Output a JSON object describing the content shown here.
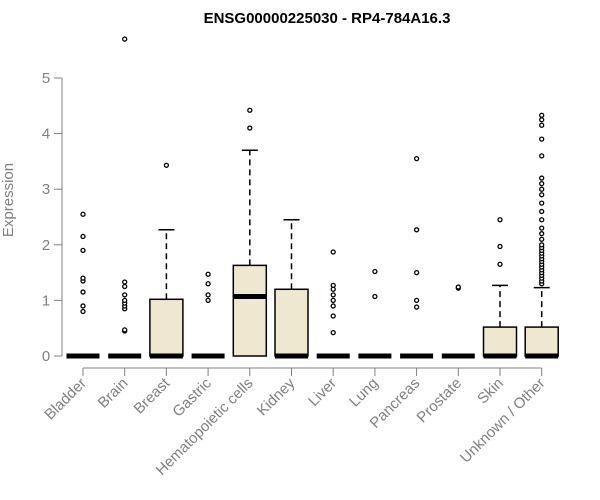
{
  "chart_data": {
    "type": "box",
    "title": "ENSG00000225030 - RP4-784A16.3",
    "ylabel": "Expression",
    "xlabel": "",
    "ylim": [
      0,
      5.6
    ],
    "yticks": [
      0,
      1,
      2,
      3,
      4,
      5
    ],
    "grid": false,
    "categories": [
      "Bladder",
      "Brain",
      "Breast",
      "Gastric",
      "Hematopoietic cells",
      "Kidney",
      "Liver",
      "Lung",
      "Pancreas",
      "Prostate",
      "Skin",
      "Unknown / Other"
    ],
    "boxes": [
      {
        "q1": 0,
        "median": 0,
        "q3": 0,
        "whisker_low": 0,
        "whisker_high": 0,
        "outliers": [
          0.8,
          0.9,
          1.15,
          1.35,
          1.4,
          1.9,
          2.15,
          2.55
        ]
      },
      {
        "q1": 0,
        "median": 0,
        "q3": 0,
        "whisker_low": 0,
        "whisker_high": 0,
        "outliers": [
          0.45,
          0.47,
          0.85,
          0.9,
          0.95,
          1.0,
          1.1,
          1.25,
          1.33,
          5.7
        ]
      },
      {
        "q1": 0,
        "median": 0,
        "q3": 1.02,
        "whisker_low": 0,
        "whisker_high": 2.27,
        "outliers": [
          3.43
        ]
      },
      {
        "q1": 0,
        "median": 0,
        "q3": 0,
        "whisker_low": 0,
        "whisker_high": 0,
        "outliers": [
          1.0,
          1.1,
          1.3,
          1.47
        ]
      },
      {
        "q1": 0,
        "median": 1.07,
        "q3": 1.63,
        "whisker_low": 0,
        "whisker_high": 3.7,
        "outliers": [
          4.1,
          4.42
        ]
      },
      {
        "q1": 0,
        "median": 0,
        "q3": 1.2,
        "whisker_low": 0,
        "whisker_high": 2.45,
        "outliers": []
      },
      {
        "q1": 0,
        "median": 0,
        "q3": 0,
        "whisker_low": 0,
        "whisker_high": 0,
        "outliers": [
          0.42,
          0.72,
          0.9,
          1.0,
          1.1,
          1.2,
          1.27,
          1.87
        ]
      },
      {
        "q1": 0,
        "median": 0,
        "q3": 0,
        "whisker_low": 0,
        "whisker_high": 0,
        "outliers": [
          1.07,
          1.52
        ]
      },
      {
        "q1": 0,
        "median": 0,
        "q3": 0,
        "whisker_low": 0,
        "whisker_high": 0,
        "outliers": [
          0.88,
          1.0,
          1.5,
          2.27,
          3.55
        ]
      },
      {
        "q1": 0,
        "median": 0,
        "q3": 0,
        "whisker_low": 0,
        "whisker_high": 0,
        "outliers": [
          1.22,
          1.24
        ]
      },
      {
        "q1": 0,
        "median": 0,
        "q3": 0.52,
        "whisker_low": 0,
        "whisker_high": 1.27,
        "outliers": [
          1.65,
          1.97,
          2.45
        ]
      },
      {
        "q1": 0,
        "median": 0,
        "q3": 0.52,
        "whisker_low": 0,
        "whisker_high": 1.23,
        "outliers": [
          1.3,
          1.35,
          1.4,
          1.45,
          1.5,
          1.55,
          1.6,
          1.65,
          1.7,
          1.75,
          1.8,
          1.85,
          1.9,
          1.95,
          2.0,
          2.1,
          2.2,
          2.3,
          2.45,
          2.6,
          2.75,
          2.9,
          3.0,
          3.1,
          3.2,
          3.6,
          3.9,
          4.15,
          4.25,
          4.33
        ]
      }
    ]
  }
}
